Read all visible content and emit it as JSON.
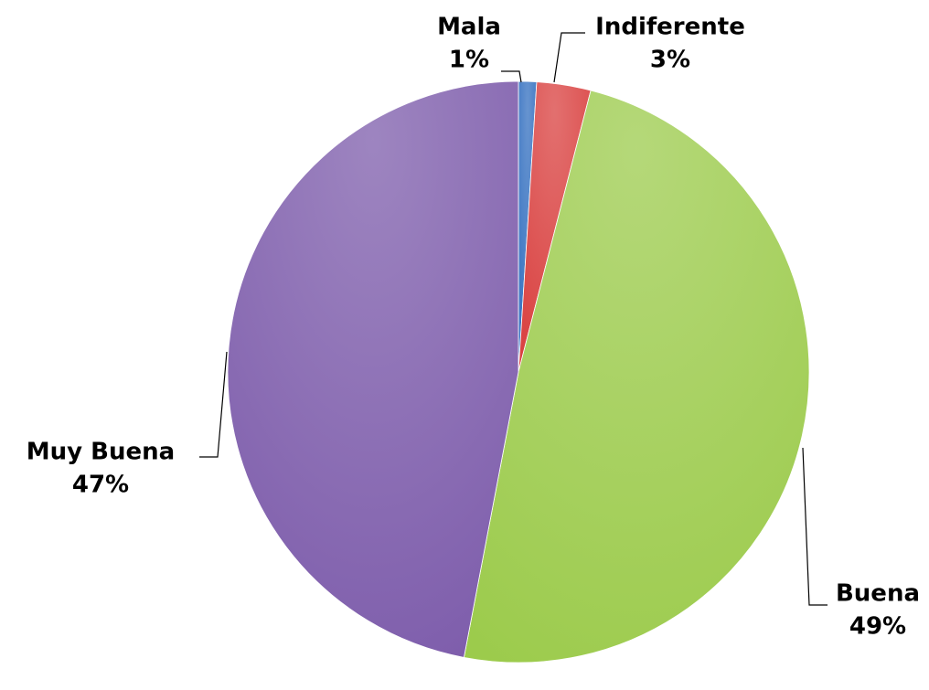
{
  "chart_data": {
    "type": "pie",
    "categories": [
      "Mala",
      "Indiferente",
      "Buena",
      "Muy Buena"
    ],
    "values": [
      1,
      3,
      49,
      47
    ],
    "value_labels": [
      "1%",
      "3%",
      "49%",
      "47%"
    ],
    "colors": [
      "#3470c0",
      "#d9403f",
      "#9ccb4c",
      "#7d5cab"
    ]
  }
}
